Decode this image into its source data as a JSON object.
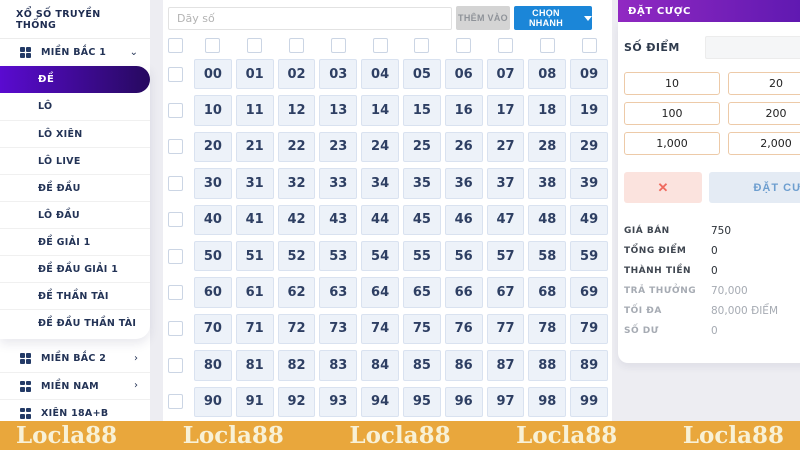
{
  "sidebar": {
    "title": "XỔ SỐ TRUYỀN THỐNG",
    "group1": {
      "label": "MIỀN BẮC 1",
      "expanded": true
    },
    "active_item": "ĐỀ",
    "sub_items": [
      "LÔ",
      "LÔ XIÊN",
      "LÔ LIVE",
      "ĐỀ ĐẦU",
      "LÔ ĐẦU",
      "ĐỀ GIẢI 1",
      "ĐỀ ĐẦU GIẢI 1",
      "ĐỀ THẦN TÀI",
      "ĐỀ ĐẦU THẦN TÀI"
    ],
    "groups": [
      {
        "label": "MIỀN BẮC 2",
        "has_chevron": true
      },
      {
        "label": "MIỀN NAM",
        "has_chevron": true
      },
      {
        "label": "XIÊN 18A+B",
        "has_chevron": false
      }
    ]
  },
  "toolbar": {
    "input_placeholder": "Dãy số",
    "input_value": "",
    "add_label": "THÊM VÀO",
    "quick_label": "CHỌN NHANH"
  },
  "grid": {
    "numbers": [
      "00",
      "01",
      "02",
      "03",
      "04",
      "05",
      "06",
      "07",
      "08",
      "09",
      "10",
      "11",
      "12",
      "13",
      "14",
      "15",
      "16",
      "17",
      "18",
      "19",
      "20",
      "21",
      "22",
      "23",
      "24",
      "25",
      "26",
      "27",
      "28",
      "29",
      "30",
      "31",
      "32",
      "33",
      "34",
      "35",
      "36",
      "37",
      "38",
      "39",
      "40",
      "41",
      "42",
      "43",
      "44",
      "45",
      "46",
      "47",
      "48",
      "49",
      "50",
      "51",
      "52",
      "53",
      "54",
      "55",
      "56",
      "57",
      "58",
      "59",
      "60",
      "61",
      "62",
      "63",
      "64",
      "65",
      "66",
      "67",
      "68",
      "69",
      "70",
      "71",
      "72",
      "73",
      "74",
      "75",
      "76",
      "77",
      "78",
      "79",
      "80",
      "81",
      "82",
      "83",
      "84",
      "85",
      "86",
      "87",
      "88",
      "89",
      "90",
      "91",
      "92",
      "93",
      "94",
      "95",
      "96",
      "97",
      "98",
      "99"
    ],
    "columns": 10
  },
  "bet_panel": {
    "title": "ĐẶT CƯỢC",
    "points_label": "SỐ ĐIỂM",
    "points_value": "",
    "quick_amounts": [
      "10",
      "20",
      "100",
      "200",
      "1,000",
      "2,000"
    ],
    "clear_icon": "✕",
    "submit_label": "ĐẶT CƯỢC",
    "info_rows": [
      {
        "label": "GIÁ BÁN",
        "value": "750",
        "muted": false
      },
      {
        "label": "TỔNG ĐIỂM",
        "value": "0",
        "muted": false
      },
      {
        "label": "THÀNH TIỀN",
        "value": "0",
        "muted": false
      },
      {
        "label": "TRẢ THƯỞNG",
        "value": "70,000",
        "muted": true
      },
      {
        "label": "TỐI ĐA",
        "value": "80,000 ĐIỂM",
        "muted": true
      },
      {
        "label": "SỐ DƯ",
        "value": "0",
        "muted": true
      }
    ]
  },
  "watermark": {
    "text": "Locla88",
    "count": 5
  },
  "colors": {
    "active_gradient_start": "#5a0bd0",
    "active_gradient_end": "#26095f",
    "bet_header_start": "#9129c2",
    "bet_header_end": "#4b12aa",
    "quick_select_blue": "#1b86d8",
    "add_button_gray": "#d4d4d4",
    "cell_bg": "#edf2f9",
    "cell_border": "#d9e2f0",
    "cell_text": "#2e3f63",
    "clear_red": "#ef6a5e",
    "submit_blue": "#6d9ecf",
    "quick_amount_border": "#edcaa8",
    "band_orange": "#e9a73c",
    "watermark_cream": "#f8f1d6"
  }
}
